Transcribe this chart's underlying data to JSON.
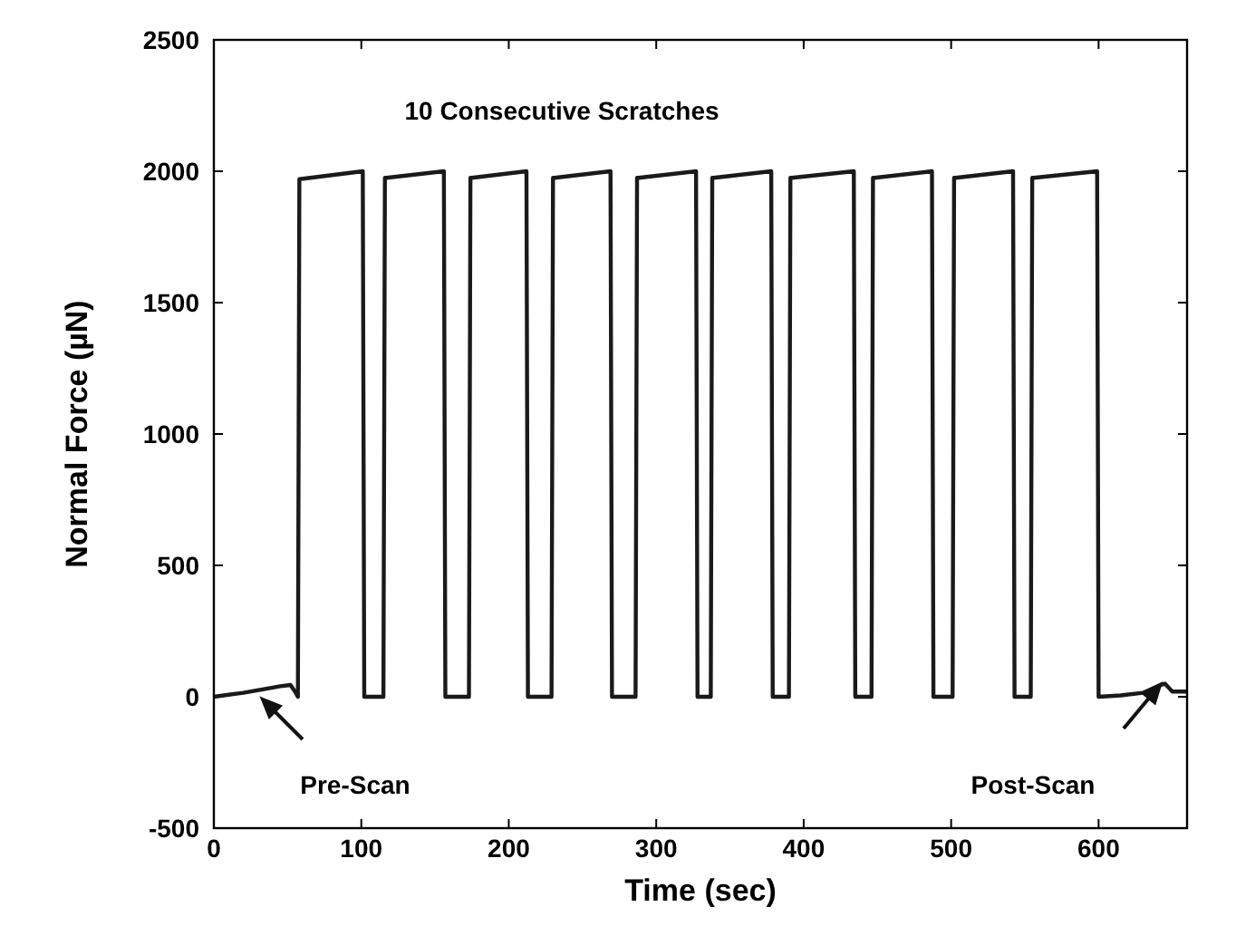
{
  "chart_data": {
    "type": "line",
    "xlabel": "Time (sec)",
    "ylabel": "Normal Force (µN)",
    "xlim": [
      0,
      660
    ],
    "ylim": [
      -500,
      2500
    ],
    "xticks": [
      0,
      100,
      200,
      300,
      400,
      500,
      600
    ],
    "yticks": [
      -500,
      0,
      500,
      1000,
      1500,
      2000,
      2500
    ],
    "grid": false,
    "marker": "none",
    "line_style": "solid",
    "annotations": [
      "10 Consecutive Scratches",
      "Pre-Scan",
      "Post-Scan"
    ],
    "series": [
      {
        "color": "#1a1a1a",
        "x": [
          0,
          20,
          45,
          52,
          55,
          57,
          58,
          101,
          102,
          115,
          116,
          117,
          156,
          157,
          173,
          174,
          175,
          212,
          213,
          229,
          230,
          231,
          269,
          270,
          286,
          287,
          288,
          327,
          328,
          337,
          338,
          339,
          378,
          379,
          390,
          391,
          392,
          434,
          435,
          446,
          447,
          448,
          487,
          488,
          501,
          502,
          503,
          542,
          543,
          554,
          555,
          556,
          599,
          600,
          615,
          630,
          640,
          645,
          650,
          660
        ],
        "values": [
          0,
          15,
          40,
          45,
          20,
          0,
          1970,
          2000,
          0,
          0,
          1975,
          1975,
          2000,
          0,
          0,
          1975,
          1975,
          2000,
          0,
          0,
          1975,
          1975,
          2000,
          0,
          0,
          1975,
          1975,
          2000,
          0,
          0,
          1975,
          1975,
          2000,
          0,
          0,
          1975,
          1975,
          2000,
          0,
          0,
          1975,
          1975,
          2000,
          0,
          0,
          1975,
          1975,
          2000,
          0,
          0,
          1975,
          1975,
          2000,
          0,
          5,
          15,
          40,
          50,
          20,
          20
        ]
      }
    ]
  }
}
